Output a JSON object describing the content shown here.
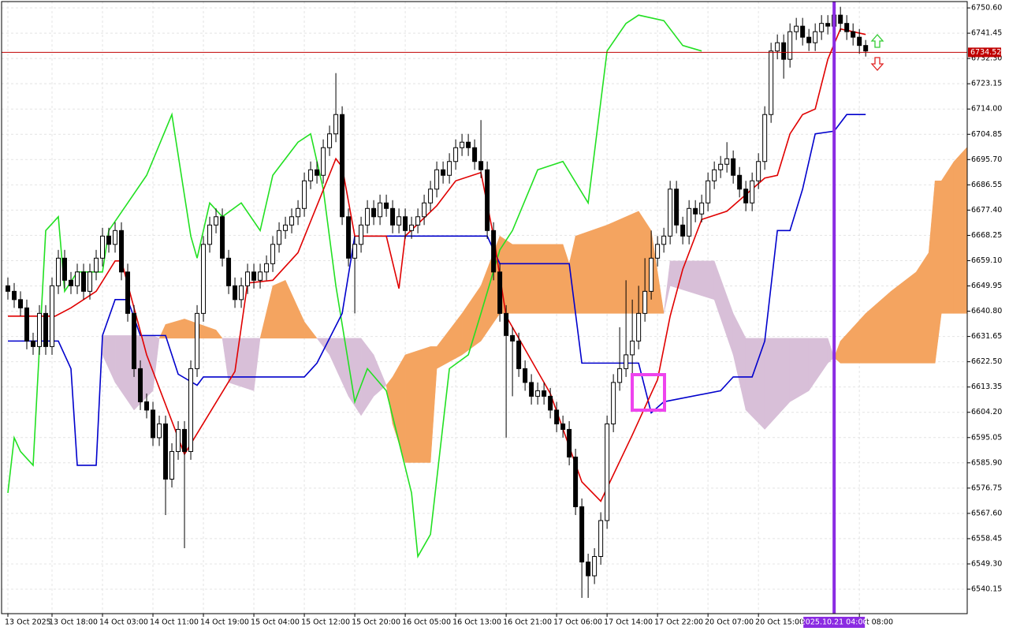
{
  "chart_data": {
    "type": "candlestick",
    "categories": [
      "13 Oct 2025",
      null,
      null,
      null,
      null,
      null,
      null,
      "13 Oct 18:00",
      null,
      null,
      null,
      null,
      null,
      null,
      null,
      "14 Oct 03:00",
      null,
      null,
      null,
      null,
      null,
      null,
      null,
      "14 Oct 11:00",
      null,
      null,
      null,
      null,
      null,
      null,
      null,
      "14 Oct 19:00",
      null,
      null,
      null,
      null,
      null,
      null,
      null,
      "15 Oct 04:00",
      null,
      null,
      null,
      null,
      null,
      null,
      null,
      "15 Oct 12:00",
      null,
      null,
      null,
      null,
      null,
      null,
      null,
      "15 Oct 20:00",
      null,
      null,
      null,
      null,
      null,
      null,
      null,
      "16 Oct 05:00",
      null,
      null,
      null,
      null,
      null,
      null,
      null,
      "16 Oct 13:00",
      null,
      null,
      null,
      null,
      null,
      null,
      null,
      "16 Oct 21:00",
      null,
      null,
      null,
      null,
      null,
      null,
      null,
      "17 Oct 06:00",
      null,
      null,
      null,
      null,
      null,
      null,
      null,
      "17 Oct 14:00",
      null,
      null,
      null,
      null,
      null,
      null,
      null,
      "17 Oct 22:00",
      null,
      null,
      null,
      null,
      null,
      null,
      null,
      "20 Oct 07:00",
      null,
      null,
      null,
      null,
      null,
      null,
      null,
      "20 Oct 15:00",
      null,
      null,
      null,
      null,
      null,
      null,
      null,
      null,
      null,
      null,
      null,
      null,
      null,
      null,
      null,
      "Oct 08:00",
      null
    ],
    "open": [
      6650,
      6648,
      6645,
      6642,
      6630,
      6628,
      6640,
      6628,
      6650,
      6660,
      6652,
      6650,
      6655,
      6648,
      6655,
      6660,
      6668,
      6665,
      6670,
      6655,
      6640,
      6620,
      6608,
      6605,
      6595,
      6600,
      6580,
      6590,
      6598,
      6590,
      6620,
      6640,
      6665,
      6672,
      6675,
      6660,
      6650,
      6645,
      6650,
      6655,
      6652,
      6655,
      6658,
      6665,
      6670,
      6672,
      6675,
      6678,
      6688,
      6692,
      6690,
      6700,
      6705,
      6712,
      6675,
      6660,
      6665,
      6672,
      6678,
      6675,
      6680,
      6678,
      6672,
      6675,
      6670,
      6672,
      6675,
      6680,
      6685,
      6692,
      6690,
      6695,
      6700,
      6702,
      6700,
      6695,
      6692,
      6670,
      6655,
      6640,
      6632,
      6630,
      6620,
      6615,
      6610,
      6612,
      6610,
      6605,
      6600,
      6598,
      6588,
      6570,
      6550,
      6545,
      6552,
      6565,
      6600,
      6615,
      6620,
      6625,
      6630,
      6640,
      6648,
      6660,
      6665,
      6668,
      6685,
      6672,
      6668,
      6678,
      6676,
      6680,
      6688,
      6692,
      6694,
      6696,
      6690,
      6685,
      6680,
      6688,
      6695,
      6712,
      6735,
      6738,
      6732,
      6742,
      6744,
      6740,
      6738,
      6742,
      6745,
      6744,
      6748,
      6745,
      6742,
      6740,
      6737
    ],
    "high": [
      6653,
      6651,
      6648,
      6645,
      6633,
      6643,
      6643,
      6653,
      6663,
      6663,
      6655,
      6658,
      6658,
      6658,
      6663,
      6671,
      6671,
      6673,
      6673,
      6658,
      6643,
      6623,
      6611,
      6608,
      6603,
      6603,
      6593,
      6601,
      6601,
      6623,
      6643,
      6668,
      6675,
      6678,
      6678,
      6663,
      6653,
      6653,
      6658,
      6658,
      6658,
      6661,
      6668,
      6673,
      6675,
      6678,
      6681,
      6691,
      6695,
      6695,
      6703,
      6708,
      6727,
      6715,
      6678,
      6668,
      6675,
      6681,
      6681,
      6683,
      6683,
      6681,
      6678,
      6678,
      6675,
      6678,
      6683,
      6688,
      6695,
      6695,
      6698,
      6703,
      6705,
      6705,
      6703,
      6710,
      6695,
      6673,
      6658,
      6643,
      6635,
      6633,
      6623,
      6618,
      6615,
      6615,
      6613,
      6608,
      6603,
      6601,
      6591,
      6573,
      6553,
      6555,
      6568,
      6603,
      6618,
      6635,
      6652,
      6645,
      6650,
      6660,
      6670,
      6668,
      6671,
      6688,
      6688,
      6675,
      6681,
      6681,
      6683,
      6691,
      6695,
      6697,
      6702,
      6699,
      6693,
      6688,
      6691,
      6698,
      6715,
      6738,
      6741,
      6741,
      6745,
      6747,
      6747,
      6743,
      6745,
      6748,
      6748,
      6751,
      6751,
      6748,
      6745,
      6743,
      6739
    ],
    "low": [
      6645,
      6642,
      6639,
      6627,
      6625,
      6625,
      6625,
      6625,
      6647,
      6649,
      6647,
      6647,
      6645,
      6645,
      6652,
      6657,
      6662,
      6662,
      6652,
      6637,
      6617,
      6605,
      6602,
      6592,
      6592,
      6567,
      6577,
      6587,
      6555,
      6587,
      6617,
      6637,
      6662,
      6669,
      6657,
      6647,
      6642,
      6642,
      6647,
      6649,
      6649,
      6652,
      6655,
      6662,
      6667,
      6669,
      6672,
      6675,
      6685,
      6687,
      6687,
      6697,
      6702,
      6672,
      6657,
      6640,
      6662,
      6669,
      6672,
      6672,
      6675,
      6669,
      6669,
      6667,
      6667,
      6669,
      6672,
      6677,
      6682,
      6687,
      6687,
      6692,
      6697,
      6697,
      6692,
      6689,
      6667,
      6652,
      6637,
      6595,
      6610,
      6617,
      6612,
      6607,
      6607,
      6607,
      6602,
      6597,
      6595,
      6585,
      6567,
      6537,
      6537,
      6542,
      6549,
      6562,
      6597,
      6612,
      6617,
      6610,
      6627,
      6637,
      6645,
      6657,
      6662,
      6665,
      6669,
      6665,
      6665,
      6673,
      6673,
      6677,
      6685,
      6689,
      6691,
      6687,
      6682,
      6677,
      6677,
      6685,
      6692,
      6709,
      6732,
      6725,
      6729,
      6739,
      6737,
      6735,
      6735,
      6739,
      6741,
      6741,
      6742,
      6739,
      6737,
      6734,
      6733
    ],
    "close": [
      6648,
      6645,
      6642,
      6630,
      6628,
      6640,
      6628,
      6650,
      6660,
      6652,
      6650,
      6655,
      6648,
      6655,
      6660,
      6668,
      6665,
      6670,
      6655,
      6640,
      6620,
      6608,
      6605,
      6595,
      6600,
      6580,
      6590,
      6598,
      6590,
      6620,
      6640,
      6665,
      6672,
      6675,
      6660,
      6650,
      6645,
      6650,
      6655,
      6652,
      6655,
      6658,
      6665,
      6670,
      6672,
      6675,
      6678,
      6688,
      6692,
      6690,
      6700,
      6705,
      6712,
      6675,
      6660,
      6665,
      6672,
      6678,
      6675,
      6680,
      6678,
      6672,
      6675,
      6670,
      6672,
      6675,
      6680,
      6685,
      6692,
      6690,
      6695,
      6700,
      6702,
      6700,
      6695,
      6692,
      6670,
      6655,
      6640,
      6632,
      6630,
      6620,
      6615,
      6610,
      6612,
      6610,
      6605,
      6600,
      6598,
      6588,
      6570,
      6550,
      6545,
      6552,
      6565,
      6600,
      6615,
      6620,
      6625,
      6630,
      6640,
      6648,
      6660,
      6665,
      6668,
      6685,
      6672,
      6668,
      6678,
      6676,
      6680,
      6688,
      6692,
      6694,
      6696,
      6690,
      6685,
      6680,
      6688,
      6695,
      6712,
      6735,
      6738,
      6732,
      6742,
      6744,
      6740,
      6738,
      6742,
      6745,
      6744,
      6748,
      6745,
      6742,
      6740,
      6737,
      6735
    ],
    "up_color": "#ffffff",
    "down_color": "#000000",
    "xlim": [
      -1,
      152.1
    ],
    "ylim": [
      6531.3,
      6752.9
    ],
    "yticks": [
      {
        "value": 6750.6,
        "label": "6750.60"
      },
      6741.45,
      {
        "value": 6732.3,
        "label": "6732.30"
      },
      6723.15,
      {
        "value": 6714,
        "label": "6714.00"
      },
      6704.85,
      {
        "value": 6695.7,
        "label": "6695.70"
      },
      6686.55,
      {
        "value": 6677.4,
        "label": "6677.40"
      },
      6668.25,
      {
        "value": 6659.1,
        "label": "6659.10"
      },
      6649.95,
      {
        "value": 6640.8,
        "label": "6640.80"
      },
      6631.65,
      {
        "value": 6622.5,
        "label": "6622.50"
      },
      6613.35,
      {
        "value": 6604.2,
        "label": "6604.20"
      },
      6595.05,
      {
        "value": 6585.9,
        "label": "6585.90"
      },
      6576.75,
      {
        "value": 6567.6,
        "label": "6567.60"
      },
      6558.45,
      {
        "value": 6549.3,
        "label": "6549.30"
      },
      6540.15
    ],
    "grid": true,
    "cloud": {
      "x": [
        15,
        17,
        20,
        23,
        24,
        25,
        28,
        33,
        34,
        35,
        39,
        40,
        42,
        44,
        47,
        49,
        51,
        54,
        56,
        58,
        60,
        61,
        63,
        67,
        68,
        72,
        75,
        78,
        80,
        88,
        89,
        90,
        95,
        100,
        102,
        104,
        105,
        112,
        115,
        117,
        120,
        124,
        127,
        130,
        131,
        132,
        136,
        140,
        144,
        146,
        147,
        148,
        150,
        152
      ],
      "span_a": [
        6625,
        6615,
        6605,
        6612,
        6631,
        6636,
        6638,
        6634,
        6631,
        6615,
        6612,
        6631,
        6650,
        6652,
        6637,
        6631,
        6625,
        6610,
        6603,
        6610,
        6614,
        6617,
        6625,
        6628,
        6628,
        6640,
        6650,
        6668,
        6665,
        6665,
        6658,
        6668,
        6672,
        6677,
        6670,
        6640,
        6650,
        6645,
        6625,
        6605,
        6598,
        6608,
        6612,
        6622,
        6624,
        6630,
        6640,
        6648,
        6655,
        6662,
        6688,
        6688,
        6695,
        6700
      ],
      "span_b": [
        6632,
        6632,
        6632,
        6632,
        6631,
        6631,
        6631,
        6631,
        6631,
        6631,
        6631,
        6631,
        6631,
        6631,
        6631,
        6631,
        6631,
        6631,
        6631,
        6625,
        6614,
        6600,
        6586,
        6586,
        6620,
        6625,
        6630,
        6640,
        6640,
        6640,
        6640,
        6640,
        6640,
        6640,
        6640,
        6640,
        6659,
        6659,
        6640,
        6631,
        6631,
        6631,
        6631,
        6631,
        6624,
        6622,
        6622,
        6622,
        6622,
        6622,
        6622,
        6640,
        6640,
        6640
      ],
      "up_color": "#f4a460",
      "down_color": "#d8bfd8"
    },
    "lines": [
      {
        "color": "#22e022",
        "x": [
          0,
          1,
          2,
          4,
          6,
          8,
          9,
          11,
          15,
          16,
          19,
          22,
          26,
          29,
          30,
          32,
          34,
          37,
          40,
          42,
          46,
          48,
          50,
          52,
          55,
          57,
          60,
          64,
          65,
          67,
          70,
          73,
          75,
          78,
          80,
          84,
          88,
          92,
          95,
          98,
          100,
          104,
          107,
          110
        ],
        "values": [
          6575,
          6595,
          6590,
          6585,
          6670,
          6675,
          6648,
          6655,
          6655,
          6670,
          6680,
          6690,
          6712,
          6668,
          6660,
          6680,
          6675,
          6680,
          6670,
          6690,
          6702,
          6705,
          6685,
          6650,
          6608,
          6620,
          6612,
          6575,
          6552,
          6560,
          6620,
          6625,
          6640,
          6663,
          6670,
          6692,
          6695,
          6680,
          6735,
          6745,
          6748,
          6746,
          6737,
          6735
        ]
      },
      {
        "color": "#0000cc",
        "x": [
          0,
          8,
          10,
          11,
          14,
          15,
          17,
          19,
          21,
          25,
          27,
          30,
          31,
          47,
          49,
          53,
          55,
          76,
          78,
          89,
          91,
          100,
          102,
          104,
          113,
          115,
          118,
          120,
          122,
          124,
          126,
          128,
          131,
          133,
          136
        ],
        "values": [
          6630,
          6630,
          6620,
          6585,
          6585,
          6632,
          6645,
          6645,
          6632,
          6632,
          6618,
          6614,
          6617,
          6617,
          6622,
          6640,
          6668,
          6668,
          6658,
          6658,
          6622,
          6622,
          6604,
          6608,
          6612,
          6617,
          6617,
          6630,
          6670,
          6670,
          6685,
          6705,
          6706,
          6712,
          6712
        ]
      },
      {
        "color": "#e00000",
        "x": [
          0,
          7.5,
          10,
          14,
          17,
          18,
          22,
          28,
          36,
          38,
          42,
          46,
          52,
          53,
          55,
          60,
          62,
          63,
          68,
          71,
          75,
          77,
          79,
          86,
          91,
          94,
          99,
          103,
          105,
          107,
          110,
          114,
          117,
          120,
          122,
          124,
          126,
          128,
          130,
          132,
          136
        ],
        "values": [
          6639,
          6639,
          6642,
          6648,
          6659,
          6659,
          6625,
          6589,
          6619,
          6651,
          6652,
          6662,
          6696,
          6693,
          6668,
          6668,
          6649,
          6668,
          6679,
          6688,
          6691,
          6668,
          6639,
          6611,
          6579,
          6572,
          6596,
          6616,
          6639,
          6656,
          6674,
          6677,
          6683,
          6689,
          6690,
          6705,
          6712,
          6714,
          6732,
          6743,
          6741
        ]
      }
    ],
    "price_line": {
      "value": 6734.52,
      "color": "#c00000"
    },
    "crosshair": {
      "x": 131,
      "label": "2025.10.21 04:00",
      "color": "#8a2be2"
    }
  }
}
